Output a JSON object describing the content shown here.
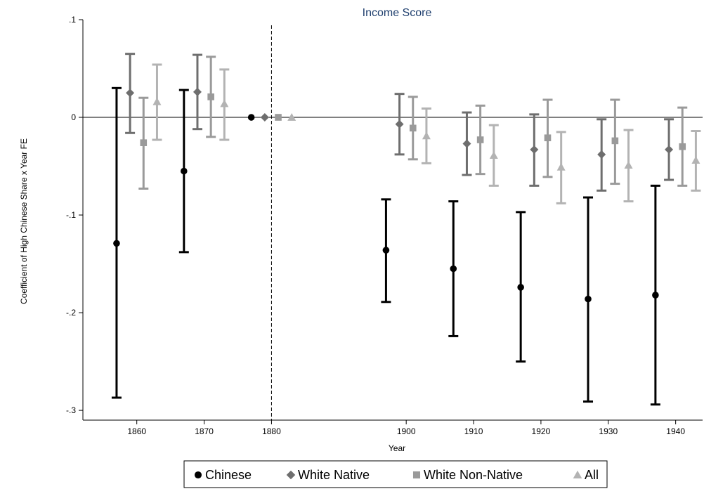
{
  "chart_data": {
    "type": "scatter",
    "title": "Income Score",
    "xlabel": "Year",
    "ylabel": "Coefficient of High Chinese Share x Year FE",
    "xlim": [
      1852,
      1944
    ],
    "ylim": [
      -0.31,
      0.1
    ],
    "x_ticks": [
      1860,
      1870,
      1880,
      1900,
      1910,
      1920,
      1930,
      1940
    ],
    "y_ticks": [
      0.1,
      0,
      -0.1,
      -0.2,
      -0.3
    ],
    "y_tick_labels": [
      ".1",
      "0",
      "-.1",
      "-.2",
      "-.3"
    ],
    "reference_vline": 1880,
    "reference_hline": 0,
    "grid": false,
    "legend_position": "bottom",
    "series": [
      {
        "name": "Chinese",
        "marker": "circle",
        "color": "#000000",
        "points": [
          {
            "x": 1857,
            "y": -0.129,
            "lo": -0.287,
            "hi": 0.03
          },
          {
            "x": 1867,
            "y": -0.055,
            "lo": -0.138,
            "hi": 0.028
          },
          {
            "x": 1877,
            "y": 0.0
          },
          {
            "x": 1897,
            "y": -0.136,
            "lo": -0.189,
            "hi": -0.084
          },
          {
            "x": 1907,
            "y": -0.155,
            "lo": -0.224,
            "hi": -0.086
          },
          {
            "x": 1917,
            "y": -0.174,
            "lo": -0.25,
            "hi": -0.097
          },
          {
            "x": 1927,
            "y": -0.186,
            "lo": -0.291,
            "hi": -0.082
          },
          {
            "x": 1937,
            "y": -0.182,
            "lo": -0.294,
            "hi": -0.07
          }
        ]
      },
      {
        "name": "White Native",
        "marker": "diamond",
        "color": "#6e6e6e",
        "points": [
          {
            "x": 1859,
            "y": 0.025,
            "lo": -0.016,
            "hi": 0.065
          },
          {
            "x": 1869,
            "y": 0.026,
            "lo": -0.012,
            "hi": 0.064
          },
          {
            "x": 1879,
            "y": 0.0
          },
          {
            "x": 1899,
            "y": -0.007,
            "lo": -0.038,
            "hi": 0.024
          },
          {
            "x": 1909,
            "y": -0.027,
            "lo": -0.059,
            "hi": 0.005
          },
          {
            "x": 1919,
            "y": -0.033,
            "lo": -0.07,
            "hi": 0.003
          },
          {
            "x": 1929,
            "y": -0.038,
            "lo": -0.075,
            "hi": -0.002
          },
          {
            "x": 1939,
            "y": -0.033,
            "lo": -0.064,
            "hi": -0.002
          }
        ]
      },
      {
        "name": "White Non-Native",
        "marker": "square",
        "color": "#9a9a9a",
        "points": [
          {
            "x": 1861,
            "y": -0.026,
            "lo": -0.073,
            "hi": 0.02
          },
          {
            "x": 1871,
            "y": 0.021,
            "lo": -0.02,
            "hi": 0.062
          },
          {
            "x": 1881,
            "y": 0.0
          },
          {
            "x": 1901,
            "y": -0.011,
            "lo": -0.043,
            "hi": 0.021
          },
          {
            "x": 1911,
            "y": -0.023,
            "lo": -0.058,
            "hi": 0.012
          },
          {
            "x": 1921,
            "y": -0.021,
            "lo": -0.061,
            "hi": 0.018
          },
          {
            "x": 1931,
            "y": -0.024,
            "lo": -0.068,
            "hi": 0.018
          },
          {
            "x": 1941,
            "y": -0.03,
            "lo": -0.07,
            "hi": 0.01
          }
        ]
      },
      {
        "name": "All",
        "marker": "triangle",
        "color": "#b3b3b3",
        "points": [
          {
            "x": 1863,
            "y": 0.016,
            "lo": -0.023,
            "hi": 0.054
          },
          {
            "x": 1873,
            "y": 0.014,
            "lo": -0.023,
            "hi": 0.049
          },
          {
            "x": 1883,
            "y": 0.0
          },
          {
            "x": 1903,
            "y": -0.019,
            "lo": -0.047,
            "hi": 0.009
          },
          {
            "x": 1913,
            "y": -0.039,
            "lo": -0.07,
            "hi": -0.008
          },
          {
            "x": 1923,
            "y": -0.051,
            "lo": -0.088,
            "hi": -0.015
          },
          {
            "x": 1933,
            "y": -0.049,
            "lo": -0.086,
            "hi": -0.013
          },
          {
            "x": 1943,
            "y": -0.044,
            "lo": -0.075,
            "hi": -0.014
          }
        ]
      }
    ]
  },
  "colors": {
    "title": "#1f3f6e",
    "axis": "#000000",
    "chinese": "#000000",
    "white_native": "#6e6e6e",
    "white_non_native": "#9a9a9a",
    "all": "#b3b3b3"
  }
}
